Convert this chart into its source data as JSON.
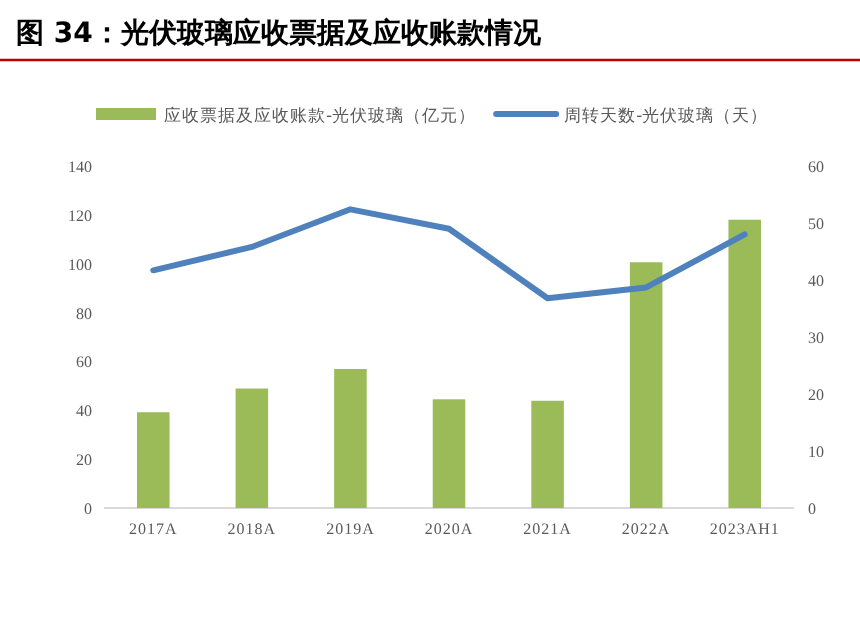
{
  "chart_data": {
    "type": "bar",
    "title": "图 34：光伏玻璃应收票据及应收账款情况",
    "categories": [
      "2017A",
      "2018A",
      "2019A",
      "2020A",
      "2021A",
      "2022A",
      "2023AH1"
    ],
    "series": [
      {
        "name": "应收票据及应收账款-光伏玻璃（亿元）",
        "color": "#9bbb59",
        "values": [
          39.2,
          48.9,
          56.9,
          44.5,
          43.9,
          100.6,
          118
        ]
      },
      {
        "name": "周转天数-光伏玻璃（天）",
        "color": "#4f81bd",
        "type": "line",
        "axis": "y2",
        "values": [
          41.7,
          45.8,
          52.4,
          49,
          36.8,
          38.7,
          48
        ]
      }
    ],
    "ylim": [
      0,
      140
    ],
    "yticks": [
      0,
      20,
      40,
      60,
      80,
      100,
      120,
      140
    ],
    "y2lim": [
      0,
      60
    ],
    "y2ticks": [
      0,
      10,
      20,
      30,
      40,
      50,
      60
    ],
    "legend": "top",
    "grid": false,
    "marker": "none"
  }
}
